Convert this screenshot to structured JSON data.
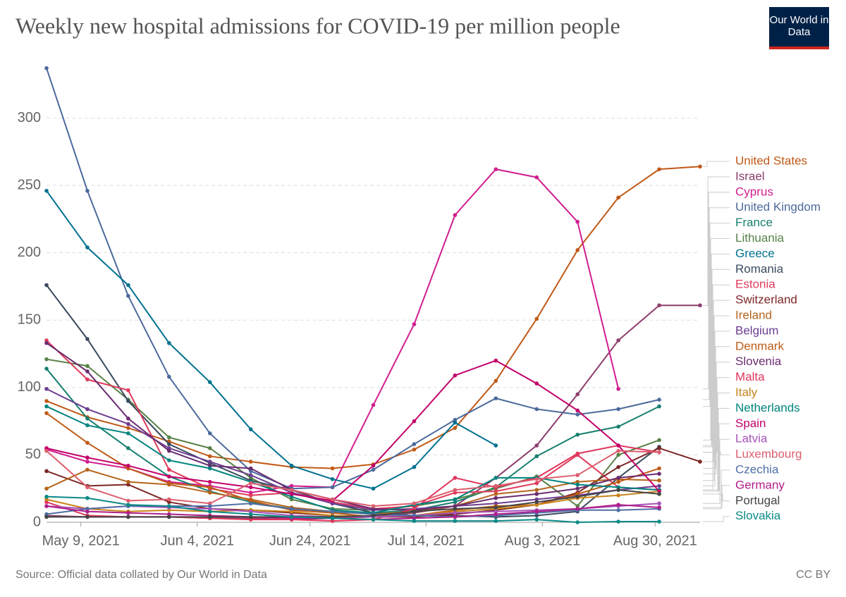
{
  "chart_data": {
    "type": "line",
    "title": "Weekly new hospital admissions for COVID-19 per million people",
    "logo": "Our World in Data",
    "source": "Source: Official data collated by Our World in Data",
    "license": "CC BY",
    "x": [
      0,
      1,
      2,
      3,
      4,
      5,
      6,
      7,
      8,
      9,
      10,
      11,
      12,
      13,
      14,
      15,
      16
    ],
    "xlim": [
      0,
      16
    ],
    "xticks": [
      {
        "value": 0.84,
        "label": "May 9, 2021"
      },
      {
        "value": 3.69,
        "label": "Jun 4, 2021"
      },
      {
        "value": 6.45,
        "label": "Jun 24, 2021"
      },
      {
        "value": 9.29,
        "label": "Jul 14, 2021"
      },
      {
        "value": 12.14,
        "label": "Aug 3, 2021"
      },
      {
        "value": 14.9,
        "label": "Aug 30, 2021"
      }
    ],
    "ylim": [
      0,
      340
    ],
    "yticks": [
      0,
      50,
      100,
      150,
      200,
      250,
      300
    ],
    "grid": true,
    "legend": "right",
    "series": [
      {
        "name": "United States",
        "color": "#c05917",
        "values": [
          90,
          78,
          70,
          60,
          49,
          45,
          41,
          40,
          43,
          54,
          70,
          105,
          151,
          202,
          241,
          262,
          264
        ]
      },
      {
        "name": "Israel",
        "color": "#8c3d6b",
        "values": [
          5,
          4,
          4,
          4,
          3,
          3,
          2,
          3,
          4,
          7,
          12,
          33,
          57,
          95,
          135,
          161,
          161
        ]
      },
      {
        "name": "Cyprus",
        "color": "#d11d8f",
        "values": [
          54,
          45,
          40,
          30,
          27,
          22,
          27,
          26,
          87,
          147,
          228,
          262,
          256,
          223,
          99,
          null,
          null
        ]
      },
      {
        "name": "United Kingdom",
        "color": "#4c6a9c",
        "values": [
          337,
          246,
          168,
          108,
          66,
          38,
          25,
          26,
          39,
          58,
          76,
          92,
          84,
          80,
          84,
          91,
          null
        ]
      },
      {
        "name": "France",
        "color": "#18806f",
        "values": [
          114,
          77,
          55,
          34,
          23,
          15,
          10,
          7,
          7,
          9,
          15,
          26,
          49,
          65,
          71,
          86,
          null
        ]
      },
      {
        "name": "Lithuania",
        "color": "#578145",
        "values": [
          121,
          116,
          91,
          63,
          55,
          33,
          17,
          10,
          9,
          12,
          17,
          25,
          34,
          12,
          50,
          61,
          null
        ]
      },
      {
        "name": "Greece",
        "color": "#00718f",
        "values": [
          246,
          204,
          176,
          133,
          104,
          69,
          42,
          32,
          25,
          41,
          74,
          57,
          null,
          null,
          null,
          null,
          null
        ]
      },
      {
        "name": "Romania",
        "color": "#3a4a5e",
        "values": [
          176,
          136,
          90,
          58,
          44,
          31,
          24,
          14,
          7,
          5,
          5,
          4,
          5,
          8,
          33,
          56,
          null
        ]
      },
      {
        "name": "Estonia",
        "color": "#e03a5c",
        "values": [
          135,
          106,
          98,
          39,
          25,
          20,
          22,
          15,
          10,
          12,
          22,
          23,
          29,
          50,
          26,
          24,
          null
        ]
      },
      {
        "name": "Switzerland",
        "color": "#7c2626",
        "values": [
          38,
          27,
          28,
          15,
          10,
          9,
          7,
          5,
          4,
          4,
          6,
          9,
          13,
          22,
          41,
          55,
          45
        ]
      },
      {
        "name": "Ireland",
        "color": "#b5651d",
        "values": [
          25,
          39,
          30,
          28,
          22,
          17,
          11,
          8,
          6,
          8,
          12,
          21,
          24,
          30,
          32,
          31,
          null
        ]
      },
      {
        "name": "Belgium",
        "color": "#6d3e91",
        "values": [
          99,
          84,
          73,
          55,
          45,
          35,
          22,
          14,
          9,
          10,
          12,
          14,
          17,
          20,
          24,
          27,
          null
        ]
      },
      {
        "name": "Denmark",
        "color": "#bf5b17",
        "values": [
          81,
          59,
          40,
          29,
          26,
          16,
          9,
          7,
          4,
          5,
          9,
          12,
          13,
          21,
          30,
          40,
          null
        ]
      },
      {
        "name": "Slovenia",
        "color": "#6a2c70",
        "values": [
          133,
          112,
          77,
          53,
          42,
          40,
          24,
          17,
          10,
          9,
          12,
          18,
          21,
          25,
          33,
          36,
          null
        ]
      },
      {
        "name": "Malta",
        "color": "#e0365b",
        "values": [
          15,
          5,
          4,
          4,
          3,
          2,
          2,
          1,
          2,
          10,
          33,
          26,
          33,
          51,
          57,
          52,
          null
        ]
      },
      {
        "name": "Italy",
        "color": "#c9841b",
        "values": [
          17,
          10,
          8,
          9,
          8,
          9,
          8,
          5,
          4,
          5,
          8,
          10,
          13,
          18,
          20,
          23,
          null
        ]
      },
      {
        "name": "Netherlands",
        "color": "#00847e",
        "values": [
          86,
          72,
          66,
          46,
          40,
          30,
          19,
          9,
          7,
          13,
          17,
          33,
          33,
          28,
          26,
          24,
          null
        ]
      },
      {
        "name": "Spain",
        "color": "#c2006a",
        "values": [
          55,
          48,
          42,
          34,
          30,
          26,
          21,
          16,
          42,
          75,
          109,
          120,
          103,
          83,
          57,
          23,
          null
        ]
      },
      {
        "name": "Latvia",
        "color": "#a652ba",
        "values": [
          12,
          10,
          12,
          11,
          10,
          8,
          5,
          4,
          4,
          5,
          7,
          8,
          9,
          10,
          12,
          14,
          null
        ]
      },
      {
        "name": "Luxembourg",
        "color": "#dc5e6e",
        "values": [
          53,
          26,
          16,
          17,
          14,
          29,
          24,
          17,
          12,
          14,
          24,
          27,
          32,
          35,
          53,
          52,
          null
        ]
      },
      {
        "name": "Czechia",
        "color": "#4f6fa6",
        "values": [
          6,
          10,
          12,
          12,
          12,
          14,
          10,
          8,
          6,
          5,
          4,
          5,
          7,
          9,
          9,
          10,
          null
        ]
      },
      {
        "name": "Germany",
        "color": "#b01e8a",
        "values": [
          12,
          8,
          7,
          6,
          5,
          4,
          3,
          3,
          2,
          3,
          4,
          6,
          8,
          10,
          13,
          11,
          null
        ]
      },
      {
        "name": "Portugal",
        "color": "#444444",
        "values": [
          4,
          4,
          4,
          4,
          4,
          4,
          4,
          4,
          5,
          8,
          10,
          11,
          15,
          19,
          24,
          21,
          null
        ]
      },
      {
        "name": "Slovakia",
        "color": "#0b8a86",
        "values": [
          19,
          18,
          13,
          12,
          8,
          6,
          4,
          3,
          2,
          1,
          1,
          1,
          2,
          0,
          0.5,
          0.5,
          null
        ]
      }
    ]
  }
}
